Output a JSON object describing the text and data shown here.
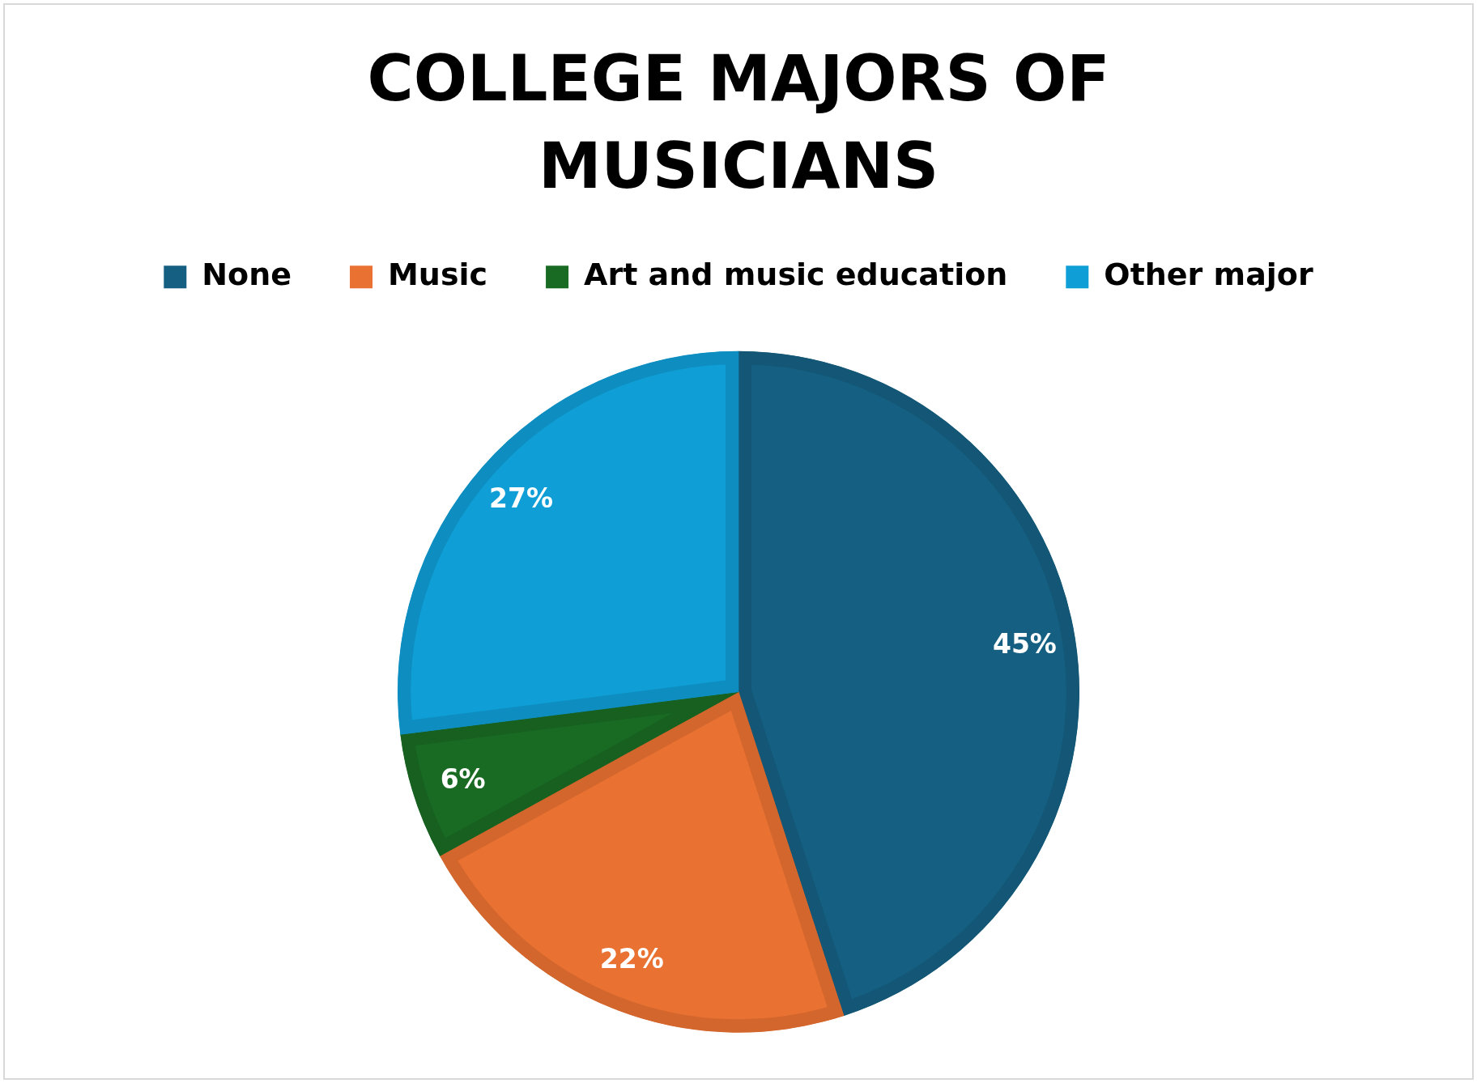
{
  "chart_data": {
    "type": "pie",
    "title": "COLLEGE MAJORS OF MUSICIANS",
    "categories": [
      "None",
      "Music",
      "Art and music education",
      "Other major"
    ],
    "values": [
      45,
      22,
      6,
      27
    ],
    "colors": [
      "#156082",
      "#e97132",
      "#196b24",
      "#0f9ed5"
    ],
    "value_labels": [
      "45%",
      "22%",
      "6%",
      "27%"
    ],
    "legend": "top"
  }
}
